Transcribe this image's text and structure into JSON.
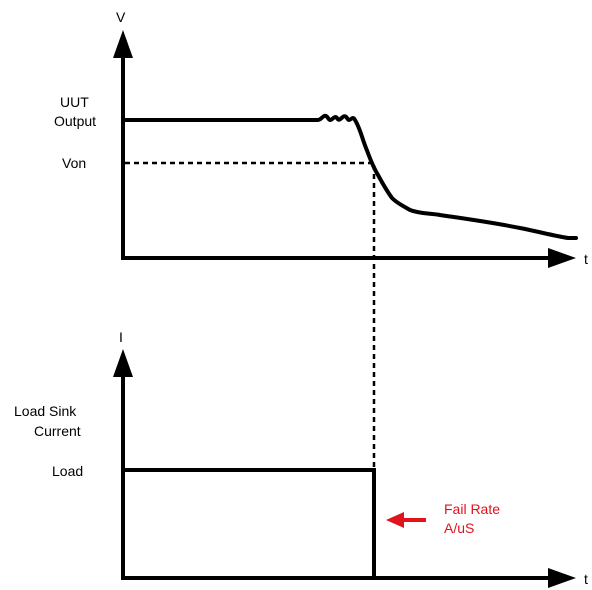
{
  "colors": {
    "ink": "#000000",
    "annotation": "#e0141e"
  },
  "voltage_graph": {
    "y_axis_symbol": "V",
    "x_axis_symbol": "t",
    "level_high_line1": "UUT",
    "level_high_line2": "Output",
    "level_threshold": "Von"
  },
  "current_graph": {
    "y_axis_symbol": "I",
    "x_axis_symbol": "t",
    "level_title_line1": "Load Sink",
    "level_title_line2": "Current",
    "level_load": "Load"
  },
  "annotation": {
    "line1": "Fail Rate",
    "line2": "A/uS",
    "arrow_icon": "left-arrow-icon"
  }
}
